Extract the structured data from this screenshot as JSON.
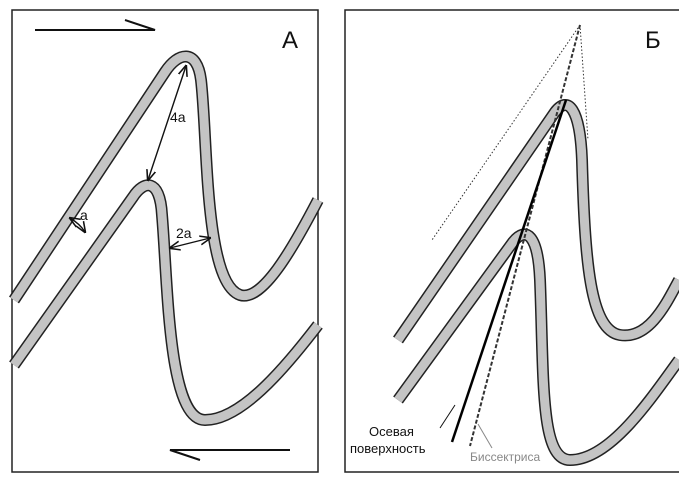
{
  "panel_a": {
    "label": "А",
    "dim_4a": "4a",
    "dim_2a": "2a",
    "dim_a": "a"
  },
  "panel_b": {
    "label": "Б",
    "axial_label_line1": "Осевая",
    "axial_label_line2": "поверхность",
    "bisector_label": "Биссектриса"
  }
}
